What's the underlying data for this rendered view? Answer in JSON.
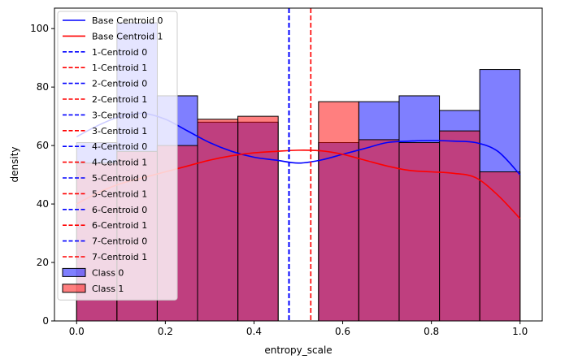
{
  "chart_data": {
    "type": "bar",
    "title": "",
    "xlabel": "entropy_scale",
    "ylabel": "density",
    "xlim": [
      -0.05,
      1.05
    ],
    "ylim": [
      0,
      107
    ],
    "xticks": [
      "0.0",
      "0.2",
      "0.4",
      "0.6",
      "0.8",
      "1.0"
    ],
    "xtick_values": [
      0.0,
      0.2,
      0.4,
      0.6,
      0.8,
      1.0
    ],
    "yticks": [
      "0",
      "20",
      "40",
      "60",
      "80",
      "100"
    ],
    "ytick_values": [
      0,
      20,
      40,
      60,
      80,
      100
    ],
    "grid": false,
    "legend_position": "upper-left",
    "bin_edges": [
      0.0,
      0.0909,
      0.1818,
      0.2727,
      0.3636,
      0.4545,
      0.5455,
      0.6364,
      0.7273,
      0.8182,
      0.9091,
      1.0
    ],
    "histograms": [
      {
        "name": "Class 0",
        "color": "#0000ff",
        "opacity": 0.5,
        "values": [
          61,
          102,
          77,
          68,
          68,
          0,
          61,
          75,
          77,
          72,
          86
        ]
      },
      {
        "name": "Class 1",
        "color": "#ff0000",
        "opacity": 0.5,
        "values": [
          54,
          58,
          60,
          69,
          70,
          0,
          75,
          62,
          61,
          65,
          51
        ]
      }
    ],
    "kde_curves": [
      {
        "name": "Base Centroid 0",
        "color": "#0000ff",
        "x": [
          0.0,
          0.05,
          0.1,
          0.15,
          0.2,
          0.25,
          0.3,
          0.35,
          0.4,
          0.45,
          0.5,
          0.55,
          0.6,
          0.65,
          0.7,
          0.75,
          0.8,
          0.85,
          0.9,
          0.95,
          1.0
        ],
        "y": [
          63,
          67,
          70,
          71,
          69,
          65,
          61,
          58,
          56,
          55,
          54,
          55,
          57,
          59,
          61,
          61.5,
          61.7,
          61.5,
          61,
          58,
          50
        ]
      },
      {
        "name": "Base Centroid 1",
        "color": "#ff0000",
        "x": [
          0.0,
          0.05,
          0.1,
          0.15,
          0.2,
          0.25,
          0.3,
          0.35,
          0.4,
          0.45,
          0.5,
          0.55,
          0.6,
          0.65,
          0.7,
          0.75,
          0.8,
          0.85,
          0.9,
          0.95,
          1.0
        ],
        "y": [
          40,
          44,
          47,
          49,
          51,
          53,
          55,
          56.5,
          57.5,
          58,
          58.4,
          58.2,
          57,
          55,
          53,
          51.5,
          51,
          50.5,
          49,
          43,
          35
        ]
      }
    ],
    "vlines": [
      {
        "name": "1-Centroid 0",
        "color": "#0000ff",
        "x": 0.479
      },
      {
        "name": "1-Centroid 1",
        "color": "#ff0000",
        "x": 0.528
      },
      {
        "name": "2-Centroid 0",
        "color": "#0000ff",
        "x": 0.479
      },
      {
        "name": "2-Centroid 1",
        "color": "#ff0000",
        "x": 0.528
      },
      {
        "name": "3-Centroid 0",
        "color": "#0000ff",
        "x": 0.479
      },
      {
        "name": "3-Centroid 1",
        "color": "#ff0000",
        "x": 0.528
      },
      {
        "name": "4-Centroid 0",
        "color": "#0000ff",
        "x": 0.479
      },
      {
        "name": "4-Centroid 1",
        "color": "#ff0000",
        "x": 0.528
      },
      {
        "name": "5-Centroid 0",
        "color": "#0000ff",
        "x": 0.479
      },
      {
        "name": "5-Centroid 1",
        "color": "#ff0000",
        "x": 0.528
      },
      {
        "name": "6-Centroid 0",
        "color": "#0000ff",
        "x": 0.479
      },
      {
        "name": "6-Centroid 1",
        "color": "#ff0000",
        "x": 0.528
      },
      {
        "name": "7-Centroid 0",
        "color": "#0000ff",
        "x": 0.479
      },
      {
        "name": "7-Centroid 1",
        "color": "#ff0000",
        "x": 0.528
      }
    ],
    "legend": [
      {
        "label": "Base Centroid 0",
        "color": "#0000ff",
        "style": "solid"
      },
      {
        "label": "Base Centroid 1",
        "color": "#ff0000",
        "style": "solid"
      },
      {
        "label": "1-Centroid 0",
        "color": "#0000ff",
        "style": "dashed"
      },
      {
        "label": "1-Centroid 1",
        "color": "#ff0000",
        "style": "dashed"
      },
      {
        "label": "2-Centroid 0",
        "color": "#0000ff",
        "style": "dashed"
      },
      {
        "label": "2-Centroid 1",
        "color": "#ff0000",
        "style": "dashed"
      },
      {
        "label": "3-Centroid 0",
        "color": "#0000ff",
        "style": "dashed"
      },
      {
        "label": "3-Centroid 1",
        "color": "#ff0000",
        "style": "dashed"
      },
      {
        "label": "4-Centroid 0",
        "color": "#0000ff",
        "style": "dashed"
      },
      {
        "label": "4-Centroid 1",
        "color": "#ff0000",
        "style": "dashed"
      },
      {
        "label": "5-Centroid 0",
        "color": "#0000ff",
        "style": "dashed"
      },
      {
        "label": "5-Centroid 1",
        "color": "#ff0000",
        "style": "dashed"
      },
      {
        "label": "6-Centroid 0",
        "color": "#0000ff",
        "style": "dashed"
      },
      {
        "label": "6-Centroid 1",
        "color": "#ff0000",
        "style": "dashed"
      },
      {
        "label": "7-Centroid 0",
        "color": "#0000ff",
        "style": "dashed"
      },
      {
        "label": "7-Centroid 1",
        "color": "#ff0000",
        "style": "dashed"
      },
      {
        "label": "Class 0",
        "color": "#0000ff",
        "style": "patch"
      },
      {
        "label": "Class 1",
        "color": "#ff0000",
        "style": "patch"
      }
    ]
  }
}
